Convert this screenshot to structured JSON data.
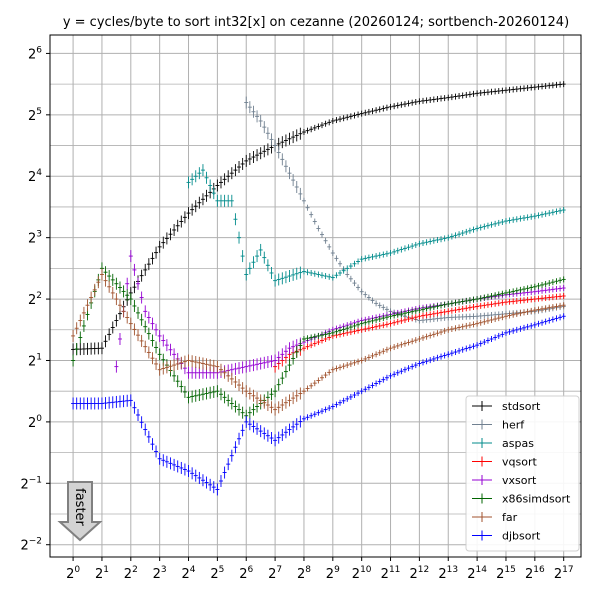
{
  "chart_data": {
    "type": "scatter",
    "title": "y = cycles/byte to sort int32[x] on cezanne (20260124; sortbench-20260124)",
    "xlabel": "",
    "ylabel": "",
    "x_scale": "log2",
    "y_scale": "log2",
    "xlim_exp": [
      -0.8,
      17.6
    ],
    "ylim_exp": [
      -2.2,
      6.3
    ],
    "x_ticks": [
      {
        "base": "2",
        "exp": "0"
      },
      {
        "base": "2",
        "exp": "1"
      },
      {
        "base": "2",
        "exp": "2"
      },
      {
        "base": "2",
        "exp": "3"
      },
      {
        "base": "2",
        "exp": "4"
      },
      {
        "base": "2",
        "exp": "5"
      },
      {
        "base": "2",
        "exp": "6"
      },
      {
        "base": "2",
        "exp": "7"
      },
      {
        "base": "2",
        "exp": "8"
      },
      {
        "base": "2",
        "exp": "9"
      },
      {
        "base": "2",
        "exp": "10"
      },
      {
        "base": "2",
        "exp": "11"
      },
      {
        "base": "2",
        "exp": "12"
      },
      {
        "base": "2",
        "exp": "13"
      },
      {
        "base": "2",
        "exp": "14"
      },
      {
        "base": "2",
        "exp": "15"
      },
      {
        "base": "2",
        "exp": "16"
      },
      {
        "base": "2",
        "exp": "17"
      }
    ],
    "y_ticks": [
      {
        "base": "2",
        "exp": "−2"
      },
      {
        "base": "2",
        "exp": "−1"
      },
      {
        "base": "2",
        "exp": "0"
      },
      {
        "base": "2",
        "exp": "1"
      },
      {
        "base": "2",
        "exp": "2"
      },
      {
        "base": "2",
        "exp": "3"
      },
      {
        "base": "2",
        "exp": "4"
      },
      {
        "base": "2",
        "exp": "5"
      },
      {
        "base": "2",
        "exp": "6"
      }
    ],
    "grid": true,
    "legend_position": "lower-right",
    "annotation": "faster",
    "series": [
      {
        "name": "stdsort",
        "color": "#000000",
        "points": [
          [
            0,
            1.18
          ],
          [
            1,
            1.2
          ],
          [
            2,
            2.1
          ],
          [
            3,
            2.85
          ],
          [
            4,
            3.4
          ],
          [
            5,
            3.85
          ],
          [
            6,
            4.25
          ],
          [
            7,
            4.5
          ],
          [
            8,
            4.72
          ],
          [
            9,
            4.9
          ],
          [
            10,
            5.02
          ],
          [
            11,
            5.13
          ],
          [
            12,
            5.22
          ],
          [
            13,
            5.28
          ],
          [
            14,
            5.35
          ],
          [
            15,
            5.4
          ],
          [
            16,
            5.45
          ],
          [
            17,
            5.5
          ]
        ]
      },
      {
        "name": "herf",
        "color": "#708090",
        "points": [
          [
            6,
            5.2
          ],
          [
            6.5,
            4.9
          ],
          [
            7,
            4.5
          ],
          [
            7.5,
            4.05
          ],
          [
            8,
            3.6
          ],
          [
            8.5,
            3.15
          ],
          [
            9,
            2.75
          ],
          [
            9.5,
            2.4
          ],
          [
            10,
            2.12
          ],
          [
            10.5,
            1.93
          ],
          [
            11,
            1.8
          ],
          [
            11.5,
            1.72
          ],
          [
            12,
            1.65
          ],
          [
            13,
            1.7
          ],
          [
            14,
            1.72
          ],
          [
            15,
            1.76
          ],
          [
            16,
            1.8
          ],
          [
            17,
            1.88
          ]
        ]
      },
      {
        "name": "aspas",
        "color": "#008b8b",
        "points": [
          [
            4,
            3.9
          ],
          [
            4.5,
            4.1
          ],
          [
            5,
            3.6
          ],
          [
            5.5,
            3.6
          ],
          [
            6,
            2.4
          ],
          [
            6.5,
            2.8
          ],
          [
            7,
            2.3
          ],
          [
            8,
            2.45
          ],
          [
            9,
            2.35
          ],
          [
            10,
            2.65
          ],
          [
            11,
            2.75
          ],
          [
            12,
            2.9
          ],
          [
            13,
            3.0
          ],
          [
            14,
            3.15
          ],
          [
            15,
            3.27
          ],
          [
            16,
            3.35
          ],
          [
            17,
            3.45
          ]
        ]
      },
      {
        "name": "vqsort",
        "color": "#ff0000",
        "points": [
          [
            7,
            0.9
          ],
          [
            7.5,
            1.1
          ],
          [
            8,
            1.2
          ],
          [
            8.5,
            1.3
          ],
          [
            9,
            1.4
          ],
          [
            10,
            1.5
          ],
          [
            11,
            1.6
          ],
          [
            12,
            1.72
          ],
          [
            13,
            1.8
          ],
          [
            14,
            1.88
          ],
          [
            15,
            1.95
          ],
          [
            16,
            2.0
          ],
          [
            17,
            2.05
          ]
        ]
      },
      {
        "name": "vxsort",
        "color": "#9400d3",
        "points": [
          [
            1.5,
            0.9
          ],
          [
            2,
            2.7
          ],
          [
            2.5,
            1.8
          ],
          [
            3,
            1.4
          ],
          [
            4,
            0.8
          ],
          [
            5,
            0.8
          ],
          [
            6,
            0.9
          ],
          [
            7,
            1.0
          ],
          [
            7.5,
            1.2
          ],
          [
            8,
            1.3
          ],
          [
            9,
            1.5
          ],
          [
            10,
            1.65
          ],
          [
            11,
            1.75
          ],
          [
            12,
            1.85
          ],
          [
            13,
            1.92
          ],
          [
            14,
            2.0
          ],
          [
            15,
            2.07
          ],
          [
            16,
            2.12
          ],
          [
            17,
            2.18
          ]
        ]
      },
      {
        "name": "x86simdsort",
        "color": "#006400",
        "points": [
          [
            0,
            1.0
          ],
          [
            1,
            2.5
          ],
          [
            2,
            2.0
          ],
          [
            3,
            1.1
          ],
          [
            4,
            0.4
          ],
          [
            5,
            0.5
          ],
          [
            6,
            0.1
          ],
          [
            7,
            0.5
          ],
          [
            8,
            1.35
          ],
          [
            9,
            1.45
          ],
          [
            10,
            1.6
          ],
          [
            11,
            1.72
          ],
          [
            12,
            1.82
          ],
          [
            13,
            1.92
          ],
          [
            14,
            2.0
          ],
          [
            15,
            2.1
          ],
          [
            16,
            2.2
          ],
          [
            17,
            2.32
          ]
        ]
      },
      {
        "name": "far",
        "color": "#a0522d",
        "points": [
          [
            0,
            1.4
          ],
          [
            1,
            2.4
          ],
          [
            2,
            1.6
          ],
          [
            3,
            0.85
          ],
          [
            4,
            1.0
          ],
          [
            5,
            0.9
          ],
          [
            6,
            0.5
          ],
          [
            7,
            0.2
          ],
          [
            8,
            0.5
          ],
          [
            9,
            0.85
          ],
          [
            10,
            1.0
          ],
          [
            11,
            1.2
          ],
          [
            12,
            1.35
          ],
          [
            13,
            1.5
          ],
          [
            14,
            1.6
          ],
          [
            15,
            1.72
          ],
          [
            16,
            1.82
          ],
          [
            17,
            1.9
          ]
        ]
      },
      {
        "name": "djbsort",
        "color": "#0000ff",
        "points": [
          [
            0,
            0.3
          ],
          [
            1,
            0.3
          ],
          [
            2,
            0.35
          ],
          [
            3,
            -0.6
          ],
          [
            4,
            -0.8
          ],
          [
            5,
            -1.1
          ],
          [
            6,
            0.0
          ],
          [
            7,
            -0.3
          ],
          [
            8,
            0.05
          ],
          [
            9,
            0.25
          ],
          [
            10,
            0.5
          ],
          [
            11,
            0.75
          ],
          [
            12,
            0.95
          ],
          [
            13,
            1.1
          ],
          [
            14,
            1.25
          ],
          [
            15,
            1.45
          ],
          [
            16,
            1.58
          ],
          [
            17,
            1.72
          ]
        ]
      }
    ]
  }
}
